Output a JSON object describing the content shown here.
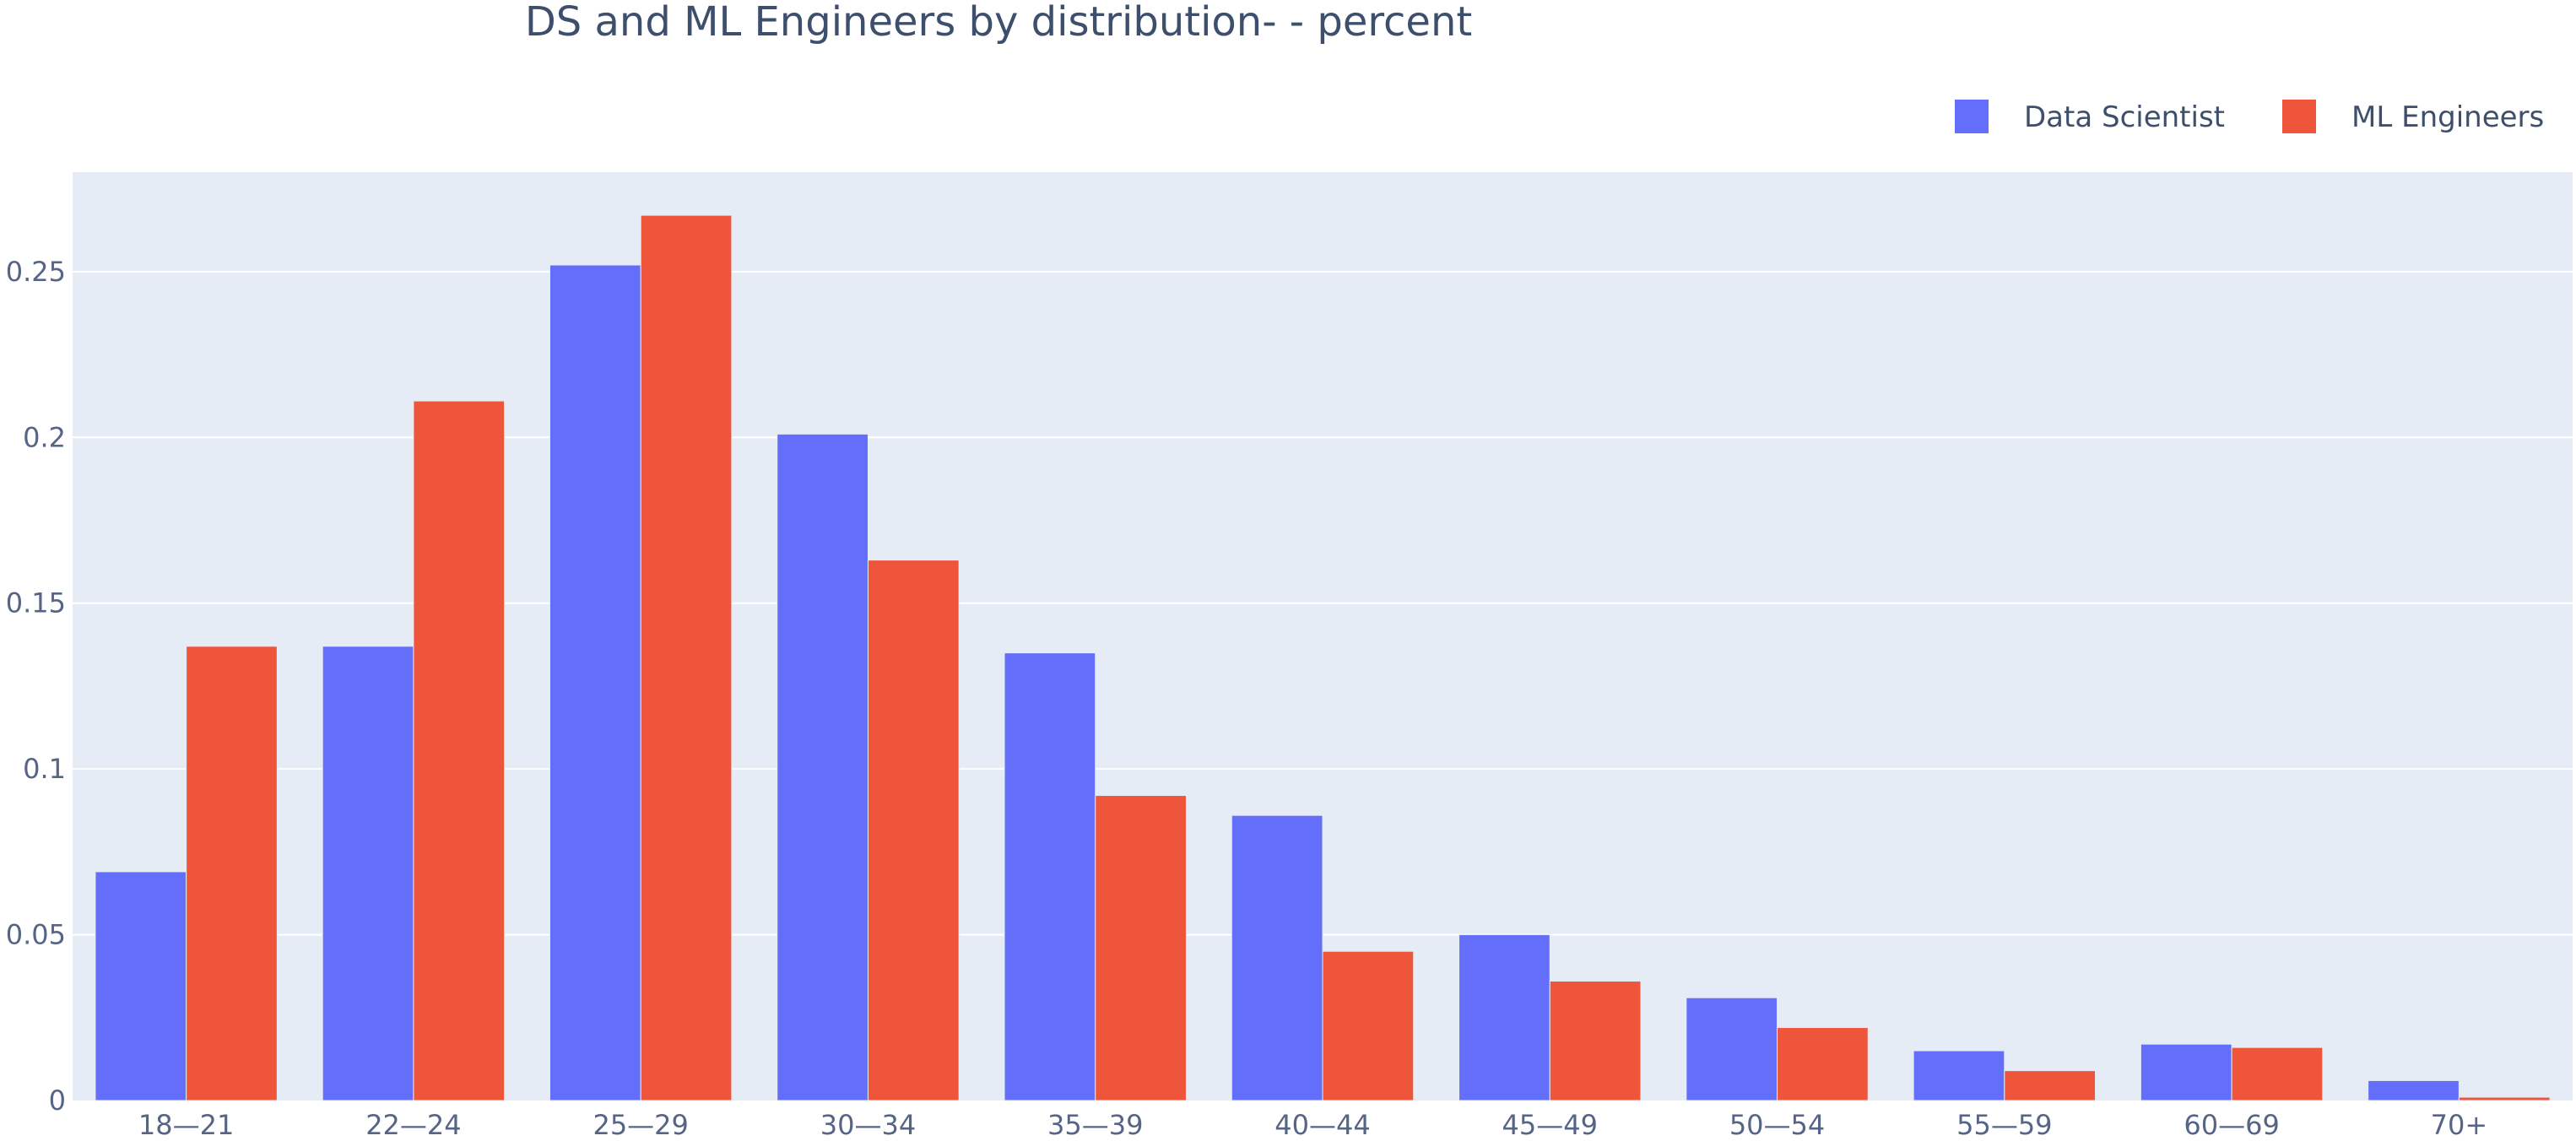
{
  "chart_data": {
    "type": "bar",
    "title": "DS and ML Engineers by  distribution- - percent",
    "xlabel": "",
    "ylabel": "",
    "categories": [
      "18—21",
      "22—24",
      "25—29",
      "30—34",
      "35—39",
      "40—44",
      "45—49",
      "50—54",
      "55—59",
      "60—69",
      "70+"
    ],
    "series": [
      {
        "name": "Data Scientist",
        "color": "#636efa",
        "values": [
          0.069,
          0.137,
          0.252,
          0.201,
          0.135,
          0.086,
          0.05,
          0.031,
          0.015,
          0.017,
          0.006
        ]
      },
      {
        "name": "ML Engineers",
        "color": "#ef553b",
        "values": [
          0.137,
          0.211,
          0.267,
          0.163,
          0.092,
          0.045,
          0.036,
          0.022,
          0.009,
          0.016,
          0.001
        ]
      }
    ],
    "ylim": [
      0,
      0.28
    ],
    "yticks": [
      0,
      0.05,
      0.1,
      0.15,
      0.2,
      0.25
    ],
    "ytick_labels": [
      "0",
      "0.05",
      "0.1",
      "0.15",
      "0.2",
      "0.25"
    ],
    "grid": true,
    "legend_position": "top-right",
    "plot_background": "#e5ecf6",
    "grid_color": "#ffffff"
  }
}
